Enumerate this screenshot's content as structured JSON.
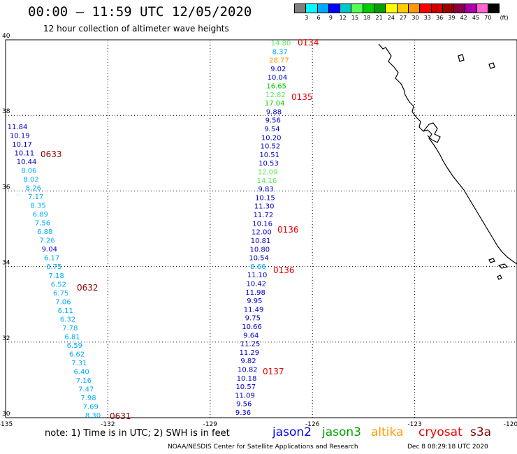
{
  "title": "00:00 – 11:59 UTC 12/05/2020",
  "subtitle": "12 hour collection of altimeter wave heights",
  "colorbar": {
    "colors": [
      "#808080",
      "#00ffff",
      "#00aaff",
      "#0000ff",
      "#00c8c8",
      "#55ff55",
      "#00cc00",
      "#00a000",
      "#ffff00",
      "#ffcc00",
      "#ff9900",
      "#ff0000",
      "#cc0000",
      "#990000",
      "#880044",
      "#aa00aa",
      "#ff66cc",
      "#000000"
    ],
    "labels": [
      "3",
      "6",
      "9",
      "12",
      "15",
      "18",
      "21",
      "24",
      "27",
      "30",
      "33",
      "36",
      "39",
      "42",
      "45",
      "70",
      "(ft)"
    ]
  },
  "map": {
    "lon_range": [
      -135,
      -120
    ],
    "lat_range": [
      30,
      40
    ],
    "lon_ticks": [
      "-135",
      "-132",
      "-129",
      "-126",
      "-123",
      "-120"
    ],
    "lat_ticks": [
      "40",
      "38",
      "36",
      "34",
      "32",
      "30"
    ],
    "grid": "dotted"
  },
  "tracks": [
    {
      "sw_values": [
        "11.84",
        "10.19",
        "10.17",
        "10.11",
        "10.44",
        "8.06",
        "8.02",
        "8.26",
        "7.17",
        "8.35",
        "6.89",
        "7.56",
        "6.88",
        "7.26",
        "9.04",
        "6.17",
        "6.75",
        "7.18",
        "6.52",
        "6.75",
        "7.06",
        "6.11",
        "6.32",
        "7.78",
        "6.81",
        "6.59",
        "6.62",
        "7.31",
        "6.40",
        "7.16",
        "7.47",
        "7.98",
        "7.69",
        "8.30"
      ],
      "sw_colors": [
        "#0000cc",
        "#0000cc",
        "#0000cc",
        "#0000cc",
        "#0000cc",
        "#00aaff",
        "#00aaff",
        "#00aaff",
        "#00aaff",
        "#00aaff",
        "#00aaff",
        "#00aaff",
        "#00aaff",
        "#00aaff",
        "#0000cc",
        "#00aaff",
        "#00aaff",
        "#00aaff",
        "#00aaff",
        "#00aaff",
        "#00aaff",
        "#00aaff",
        "#00aaff",
        "#00aaff",
        "#00aaff",
        "#00aaff",
        "#00aaff",
        "#00aaff",
        "#00aaff",
        "#00aaff",
        "#00aaff",
        "#00aaff",
        "#00aaff",
        "#00aaff"
      ],
      "times": [
        {
          "label": "0633",
          "color": "#880000"
        },
        {
          "label": "0632",
          "color": "#880000"
        },
        {
          "label": "0631",
          "color": "#880000"
        }
      ]
    },
    {
      "ne_values": [
        "14.80",
        "8.37",
        "28.77",
        "9.02",
        "10.04",
        "16.65",
        "12.82",
        "17.04",
        "9.88",
        "9.56",
        "9.54",
        "10.20",
        "10.52",
        "10.51",
        "10.53",
        "12.09",
        "14.16",
        "9.83",
        "10.15",
        "11.30",
        "11.72",
        "10.16",
        "12.00",
        "10.81",
        "10.80",
        "10.54",
        "8.66",
        "11.10",
        "10.42",
        "11.98",
        "9.95",
        "11.49",
        "9.75",
        "10.66",
        "9.64",
        "11.25",
        "11.29",
        "9.82",
        "10.82",
        "10.18",
        "10.57",
        "11.09",
        "9.56",
        "9.36"
      ],
      "ne_colors": [
        "#55ee55",
        "#00aaff",
        "#ff9900",
        "#0000cc",
        "#0000cc",
        "#00cc00",
        "#55ee55",
        "#00cc00",
        "#0000cc",
        "#0000cc",
        "#0000cc",
        "#0000cc",
        "#0000cc",
        "#0000cc",
        "#0000cc",
        "#55ee55",
        "#55ee55",
        "#0000cc",
        "#0000cc",
        "#0000cc",
        "#0000cc",
        "#0000cc",
        "#0000cc",
        "#0000cc",
        "#0000cc",
        "#0000cc",
        "#00aaff",
        "#0000cc",
        "#0000cc",
        "#0000cc",
        "#0000cc",
        "#0000cc",
        "#0000cc",
        "#0000cc",
        "#0000cc",
        "#0000cc",
        "#0000cc",
        "#0000cc",
        "#0000cc",
        "#0000cc",
        "#0000cc",
        "#0000cc",
        "#0000cc",
        "#0000cc"
      ],
      "times": [
        {
          "label": "0134",
          "color": "#ee0000"
        },
        {
          "label": "0135",
          "color": "#ee0000"
        },
        {
          "label": "0136",
          "color": "#ee0000"
        },
        {
          "label": "0136",
          "color": "#ee0000"
        },
        {
          "label": "0137",
          "color": "#ee0000"
        }
      ]
    }
  ],
  "note": "note: 1) Time is in UTC; 2) SWH is in feet",
  "legend": [
    {
      "name": "jason2",
      "color": "#0000ff"
    },
    {
      "name": "jason3",
      "color": "#00a000"
    },
    {
      "name": "altika",
      "color": "#ff9900"
    },
    {
      "name": "cryosat",
      "color": "#ee0000"
    },
    {
      "name": "s3a",
      "color": "#880000"
    }
  ],
  "footer": {
    "credit": "NOAA/NESDIS Center for Satellite Applications and Research",
    "timestamp": "Dec  8 08:29:18 UTC 2020"
  }
}
